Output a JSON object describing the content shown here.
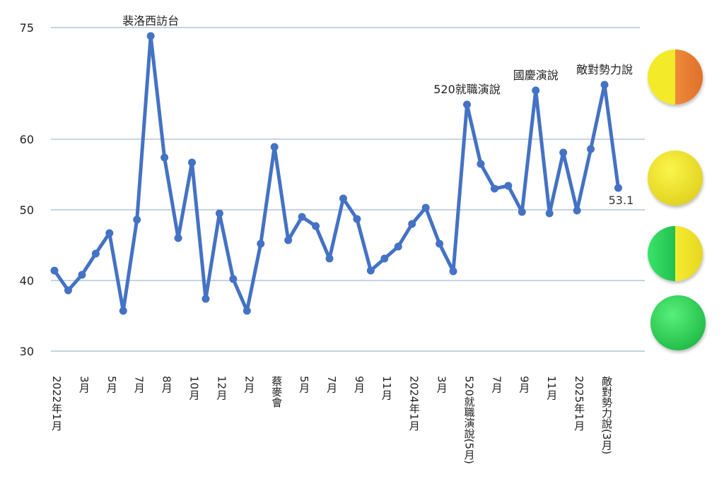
{
  "chart_data": {
    "type": "line",
    "title": "",
    "xlabel": "",
    "ylabel": "",
    "ylim": [
      30,
      75
    ],
    "yticks": [
      30,
      40,
      50,
      60,
      75
    ],
    "grid": true,
    "x_labels": [
      "2022年1月",
      "3月",
      "5月",
      "7月",
      "8月",
      "10月",
      "12月",
      "2月",
      "蔡麥會",
      "5月",
      "7月",
      "9月",
      "11月",
      "2024年1月",
      "3月",
      "520就職演說(5月)",
      "7月",
      "9月",
      "11月",
      "2025年1月",
      "敵對勢力說(3月)"
    ],
    "x_label_step": 2,
    "series": [
      {
        "name": "",
        "color": "#4472C4",
        "values": [
          41.4,
          38.6,
          40.8,
          43.8,
          46.7,
          35.7,
          48.6,
          74.6,
          57.4,
          46.0,
          56.7,
          37.4,
          49.5,
          40.2,
          35.7,
          45.2,
          58.9,
          45.7,
          49.0,
          47.7,
          43.1,
          51.6,
          48.7,
          41.4,
          43.1,
          44.8,
          48.0,
          50.3,
          45.2,
          41.3,
          64.9,
          56.5,
          53.0,
          53.4,
          49.7,
          66.9,
          49.5,
          58.1,
          49.9,
          58.6,
          67.7,
          53.1
        ]
      }
    ],
    "annotations": [
      {
        "index": 7,
        "text": "裴洛西訪台"
      },
      {
        "index": 30,
        "text": "520就職演說"
      },
      {
        "index": 35,
        "text": "國慶演說"
      },
      {
        "index": 40,
        "text": "敵對勢力說"
      }
    ],
    "data_labels": [
      {
        "index": 41,
        "text": "53.1"
      }
    ],
    "indicators": [
      "yellow-orange",
      "yellow",
      "green-yellow",
      "green"
    ]
  }
}
